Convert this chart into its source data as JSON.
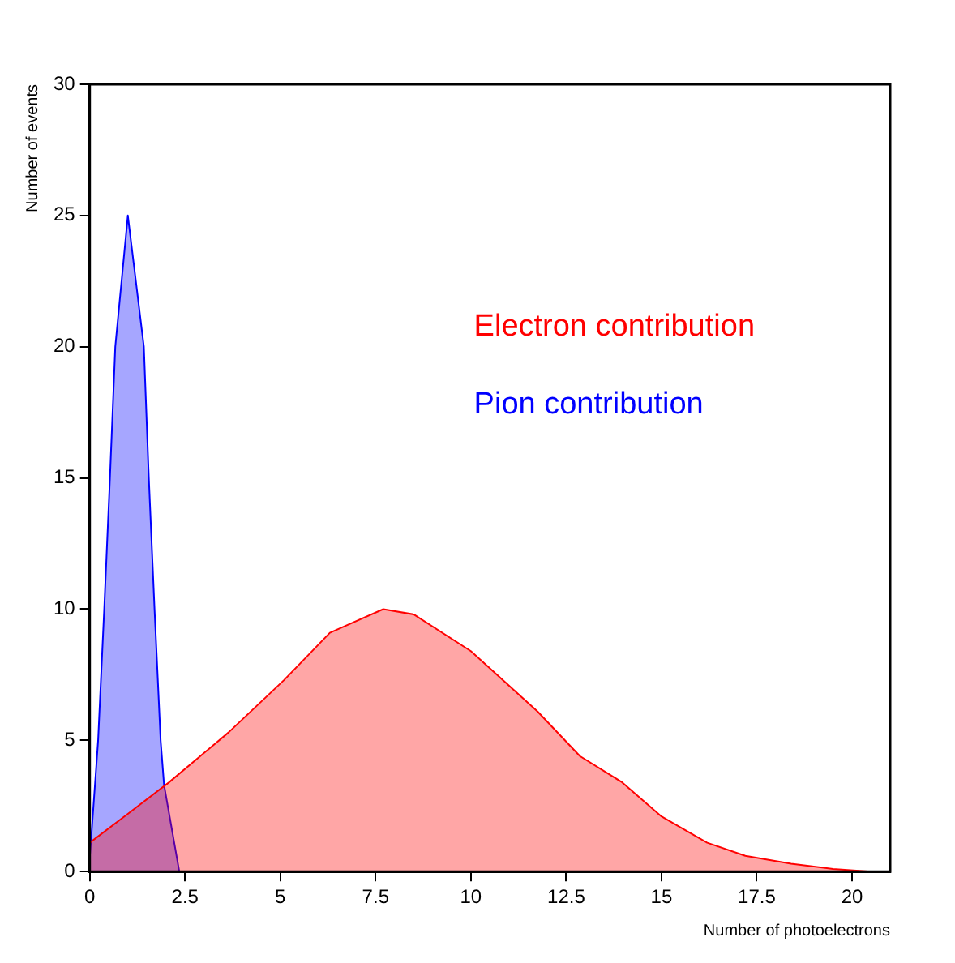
{
  "chart_data": {
    "type": "area",
    "xlabel": "Number of photoelectrons",
    "ylabel": "Number of events",
    "xlim": [
      0,
      21
    ],
    "xticks": [
      0,
      2.5,
      5,
      7.5,
      10,
      12.5,
      15,
      17.5,
      20
    ],
    "ylim": [
      0,
      30
    ],
    "yticks": [
      0,
      5,
      10,
      15,
      20,
      25,
      30
    ],
    "grid": false,
    "legend": "top right",
    "series": [
      {
        "name": "Electron contribution",
        "color": "#ff0000",
        "x": [
          0,
          1,
          2.08,
          3.64,
          5.1,
          6.3,
          7.7,
          8.5,
          10,
          11.75,
          12.86,
          13.97,
          15,
          16.2,
          17.2,
          18.4,
          19.5,
          20.5
        ],
        "values": [
          1.1,
          2.2,
          3.4,
          5.3,
          7.3,
          9.1,
          10,
          9.8,
          8.4,
          6.1,
          4.4,
          3.4,
          2.1,
          1.1,
          0.6,
          0.3,
          0.1,
          0
        ]
      },
      {
        "name": "Pion contribution",
        "color": "#0000ff",
        "x": [
          0,
          0.22,
          0.38,
          0.53,
          0.67,
          1,
          1.42,
          1.55,
          1.7,
          1.86,
          1.95,
          2.35
        ],
        "values": [
          0.5,
          5,
          10,
          15,
          20,
          25,
          20,
          15,
          10,
          5,
          3.3,
          0
        ]
      }
    ]
  }
}
